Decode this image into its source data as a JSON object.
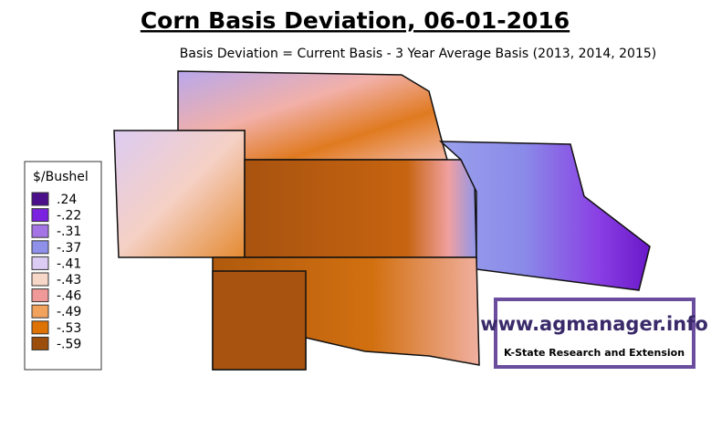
{
  "title": "Corn Basis Deviation, 06-01-2016",
  "subtitle": "Basis Deviation = Current Basis - 3 Year Average Basis (2013, 2014, 2015)",
  "legend": {
    "title": "$/Bushel",
    "items": [
      {
        "label": ".24",
        "color": "#4b0f8c"
      },
      {
        "label": "-.22",
        "color": "#7a22e0"
      },
      {
        "label": "-.31",
        "color": "#a474e4"
      },
      {
        "label": "-.37",
        "color": "#8e90ea"
      },
      {
        "label": "-.41",
        "color": "#dccbf2"
      },
      {
        "label": "-.43",
        "color": "#f7d8c8"
      },
      {
        "label": "-.46",
        "color": "#ef9a98"
      },
      {
        "label": "-.49",
        "color": "#f1a35e"
      },
      {
        "label": "-.53",
        "color": "#de7204"
      },
      {
        "label": "-.59",
        "color": "#9c4e0c"
      }
    ]
  },
  "logo": {
    "url": "www.agmanager.info",
    "org": "K-State Research and Extension"
  }
}
